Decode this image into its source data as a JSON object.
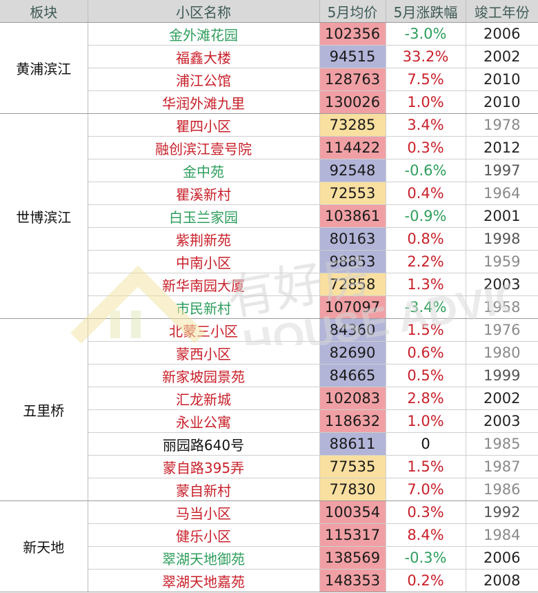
{
  "colors": {
    "header_bg": "#d9d9d9",
    "header_text": "#3e5a55",
    "up_red": "#c8202a",
    "down_green": "#2e9e5c",
    "neutral": "#111111",
    "price_high_pink": "#f0a0a4",
    "price_mid_lavender": "#b2b4d8",
    "price_low_yellow": "#f9dfa0",
    "year_old_gray": "#8a8a8a",
    "year_new_black": "#222222"
  },
  "table": {
    "headers": [
      "板块",
      "小区名称",
      "5月均价",
      "5月涨跌幅",
      "竣工年份"
    ],
    "groups": [
      {
        "block": "黄浦滨江",
        "rows": [
          {
            "name": "金外滩花园",
            "price": "102356",
            "change": "-3.0%",
            "year": "2006",
            "trend": "down",
            "tier": "high",
            "age": "new"
          },
          {
            "name": "福鑫大楼",
            "price": "94515",
            "change": "33.2%",
            "year": "2002",
            "trend": "up",
            "tier": "mid",
            "age": "new"
          },
          {
            "name": "浦江公馆",
            "price": "128763",
            "change": "7.5%",
            "year": "2010",
            "trend": "up",
            "tier": "high",
            "age": "new"
          },
          {
            "name": "华润外滩九里",
            "price": "130026",
            "change": "1.0%",
            "year": "2010",
            "trend": "up",
            "tier": "high",
            "age": "new"
          }
        ]
      },
      {
        "block": "世博滨江",
        "rows": [
          {
            "name": "瞿四小区",
            "price": "73285",
            "change": "3.4%",
            "year": "1978",
            "trend": "up",
            "tier": "low",
            "age": "old"
          },
          {
            "name": "融创滨江壹号院",
            "price": "114422",
            "change": "0.3%",
            "year": "2012",
            "trend": "up",
            "tier": "high",
            "age": "new"
          },
          {
            "name": "金中苑",
            "price": "92548",
            "change": "-0.6%",
            "year": "1997",
            "trend": "down",
            "tier": "mid",
            "age": "mid"
          },
          {
            "name": "瞿溪新村",
            "price": "72553",
            "change": "0.4%",
            "year": "1964",
            "trend": "up",
            "tier": "low",
            "age": "old"
          },
          {
            "name": "白玉兰家园",
            "price": "103861",
            "change": "-0.9%",
            "year": "2001",
            "trend": "down",
            "tier": "high",
            "age": "new"
          },
          {
            "name": "紫荆新苑",
            "price": "80163",
            "change": "0.8%",
            "year": "1998",
            "trend": "up",
            "tier": "mid",
            "age": "mid"
          },
          {
            "name": "中南小区",
            "price": "98853",
            "change": "2.2%",
            "year": "1959",
            "trend": "up",
            "tier": "mid",
            "age": "old"
          },
          {
            "name": "新华南园大厦",
            "price": "72858",
            "change": "1.3%",
            "year": "2003",
            "trend": "up",
            "tier": "low",
            "age": "new"
          },
          {
            "name": "市民新村",
            "price": "107097",
            "change": "-3.4%",
            "year": "1958",
            "trend": "down",
            "tier": "high",
            "age": "old"
          }
        ]
      },
      {
        "block": "五里桥",
        "rows": [
          {
            "name": "北蒙三小区",
            "price": "84360",
            "change": "1.5%",
            "year": "1976",
            "trend": "up",
            "tier": "mid",
            "age": "old"
          },
          {
            "name": "蒙西小区",
            "price": "82690",
            "change": "0.6%",
            "year": "1980",
            "trend": "up",
            "tier": "mid",
            "age": "old"
          },
          {
            "name": "新家坡园景苑",
            "price": "84665",
            "change": "0.5%",
            "year": "1999",
            "trend": "up",
            "tier": "mid",
            "age": "mid"
          },
          {
            "name": "汇龙新城",
            "price": "102083",
            "change": "2.8%",
            "year": "2002",
            "trend": "up",
            "tier": "high",
            "age": "new"
          },
          {
            "name": "永业公寓",
            "price": "118632",
            "change": "1.0%",
            "year": "2003",
            "trend": "up",
            "tier": "high",
            "age": "new"
          },
          {
            "name": "丽园路640号",
            "price": "88611",
            "change": "0",
            "year": "1985",
            "trend": "flat",
            "tier": "mid",
            "age": "old"
          },
          {
            "name": "蒙自路395弄",
            "price": "77535",
            "change": "1.5%",
            "year": "1987",
            "trend": "up",
            "tier": "low",
            "age": "old"
          },
          {
            "name": "蒙自新村",
            "price": "77830",
            "change": "7.0%",
            "year": "1986",
            "trend": "up",
            "tier": "low",
            "age": "old"
          }
        ]
      },
      {
        "block": "新天地",
        "rows": [
          {
            "name": "马当小区",
            "price": "100354",
            "change": "0.3%",
            "year": "1992",
            "trend": "up",
            "tier": "high",
            "age": "mid"
          },
          {
            "name": "健乐小区",
            "price": "115317",
            "change": "8.4%",
            "year": "1984",
            "trend": "up",
            "tier": "high",
            "age": "old"
          },
          {
            "name": "翠湖天地御苑",
            "price": "138569",
            "change": "-0.3%",
            "year": "2006",
            "trend": "down",
            "tier": "high",
            "age": "new"
          },
          {
            "name": "翠湖天地嘉苑",
            "price": "148353",
            "change": "0.2%",
            "year": "2008",
            "trend": "up",
            "tier": "high",
            "age": "new"
          }
        ]
      }
    ]
  },
  "watermark": {
    "cn": "有好房",
    "en": "HOUSE ADVICE"
  }
}
